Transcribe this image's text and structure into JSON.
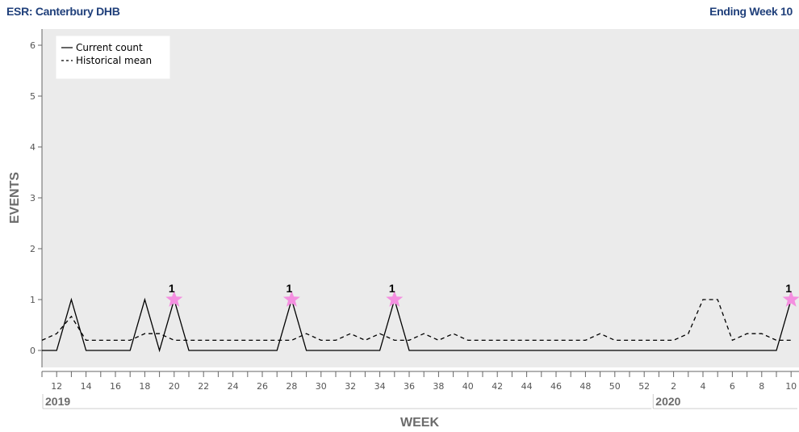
{
  "header": {
    "left_title": "ESR: Canterbury DHB",
    "right_title": "Ending Week 10"
  },
  "colors": {
    "plot_background": "#ebebeb",
    "marker": "#f48fe0",
    "line": "#000000",
    "title_blue": "#1f3f7a"
  },
  "chart_data": {
    "type": "line",
    "xlabel": "WEEK",
    "ylabel": "EVENTS",
    "ylim": [
      0,
      6
    ],
    "yticks": [
      0,
      1,
      2,
      3,
      4,
      5,
      6
    ],
    "x": [
      12,
      13,
      14,
      15,
      16,
      17,
      18,
      19,
      20,
      21,
      22,
      23,
      24,
      25,
      26,
      27,
      28,
      29,
      30,
      31,
      32,
      33,
      34,
      35,
      36,
      37,
      38,
      39,
      40,
      41,
      42,
      43,
      44,
      45,
      46,
      47,
      48,
      49,
      50,
      51,
      52,
      1,
      2,
      3,
      4,
      5,
      6,
      7,
      8,
      9,
      10
    ],
    "x_tick_labels": [
      "12",
      "14",
      "16",
      "18",
      "20",
      "22",
      "24",
      "26",
      "28",
      "30",
      "32",
      "34",
      "36",
      "38",
      "40",
      "42",
      "44",
      "46",
      "48",
      "50",
      "52",
      "2",
      "4",
      "6",
      "8",
      "10"
    ],
    "years": [
      {
        "label": "2019",
        "start_week": 11
      },
      {
        "label": "2020",
        "start_week": 1
      }
    ],
    "legend": {
      "position": "top-left"
    },
    "grid": false,
    "series": [
      {
        "name": "Current count",
        "style": "solid",
        "values": [
          0,
          1,
          0,
          0,
          0,
          0,
          1,
          0,
          1,
          0,
          0,
          0,
          0,
          0,
          0,
          0,
          1,
          0,
          0,
          0,
          0,
          0,
          0,
          1,
          0,
          0,
          0,
          0,
          0,
          0,
          0,
          0,
          0,
          0,
          0,
          0,
          0,
          0,
          0,
          0,
          0,
          0,
          0,
          0,
          0,
          0,
          0,
          0,
          0,
          0,
          1
        ]
      },
      {
        "name": "Historical mean",
        "style": "dashed",
        "values": [
          0.33,
          0.67,
          0.2,
          0.2,
          0.2,
          0.2,
          0.33,
          0.33,
          0.2,
          0.2,
          0.2,
          0.2,
          0.2,
          0.2,
          0.2,
          0.2,
          0.2,
          0.33,
          0.2,
          0.2,
          0.33,
          0.2,
          0.33,
          0.2,
          0.2,
          0.33,
          0.2,
          0.33,
          0.2,
          0.2,
          0.2,
          0.2,
          0.2,
          0.2,
          0.2,
          0.2,
          0.2,
          0.33,
          0.2,
          0.2,
          0.2,
          0.2,
          0.2,
          0.33,
          1,
          1,
          0.2,
          0.33,
          0.33,
          0.2,
          0.2
        ]
      }
    ],
    "flagged_points": [
      {
        "week": 20,
        "value": 1,
        "label": "1"
      },
      {
        "week": 28,
        "value": 1,
        "label": "1"
      },
      {
        "week": 35,
        "value": 1,
        "label": "1"
      },
      {
        "week": 10,
        "value": 1,
        "label": "1"
      }
    ]
  }
}
